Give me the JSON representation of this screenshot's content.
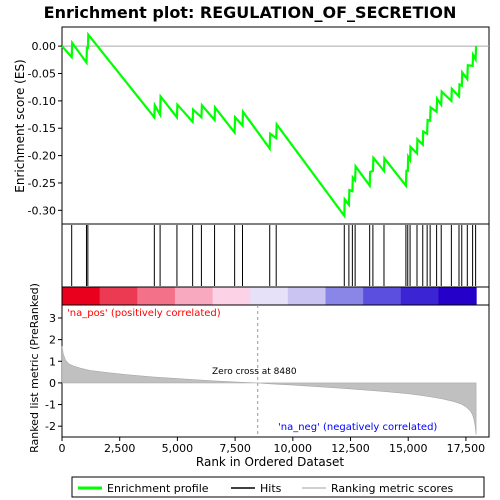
{
  "chart_data": {
    "type": "line",
    "title": "Enrichment plot: REGULATION_OF_SECRETION",
    "top_panel": {
      "ylabel": "Enrichment score (ES)",
      "ylim": [
        -0.325,
        0.035
      ],
      "yticks": [
        0.0,
        -0.05,
        -0.1,
        -0.15,
        -0.2,
        -0.25,
        -0.3
      ],
      "ytick_labels": [
        "0.00",
        "-0.05",
        "-0.10",
        "-0.15",
        "-0.20",
        "-0.25",
        "-0.30"
      ],
      "series": [
        {
          "name": "Enrichment profile",
          "color": "#00ff00",
          "x": [
            0,
            420,
            440,
            1060,
            1080,
            1120,
            1140,
            4000,
            4020,
            4250,
            4270,
            4980,
            5000,
            5660,
            5680,
            6040,
            6060,
            6610,
            6630,
            7480,
            7500,
            7820,
            7840,
            9000,
            9020,
            9280,
            9300,
            12230,
            12250,
            12430,
            12450,
            12580,
            12600,
            12700,
            12720,
            13330,
            13350,
            13470,
            13490,
            13950,
            13970,
            14900,
            14920,
            14980,
            15000,
            15080,
            15100,
            15380,
            15400,
            15630,
            15650,
            15820,
            15840,
            15950,
            15970,
            16230,
            16250,
            16430,
            16450,
            16870,
            16890,
            17200,
            17220,
            17320,
            17340,
            17560,
            17580,
            17790,
            17810,
            17920,
            17940
          ],
          "y": [
            0.0,
            -0.02,
            0.006,
            -0.03,
            -0.003,
            -0.003,
            0.021,
            -0.13,
            -0.108,
            -0.125,
            -0.092,
            -0.13,
            -0.107,
            -0.138,
            -0.116,
            -0.13,
            -0.108,
            -0.135,
            -0.112,
            -0.158,
            -0.13,
            -0.145,
            -0.12,
            -0.187,
            -0.16,
            -0.168,
            -0.143,
            -0.31,
            -0.28,
            -0.29,
            -0.263,
            -0.265,
            -0.24,
            -0.245,
            -0.22,
            -0.255,
            -0.23,
            -0.228,
            -0.204,
            -0.228,
            -0.205,
            -0.255,
            -0.228,
            -0.228,
            -0.202,
            -0.208,
            -0.184,
            -0.196,
            -0.17,
            -0.18,
            -0.156,
            -0.16,
            -0.135,
            -0.136,
            -0.112,
            -0.12,
            -0.096,
            -0.107,
            -0.083,
            -0.1,
            -0.078,
            -0.092,
            -0.07,
            -0.072,
            -0.048,
            -0.06,
            -0.035,
            -0.036,
            -0.016,
            -0.024,
            0.0
          ]
        }
      ]
    },
    "hits_panel": {
      "series_name": "Hits",
      "hit_positions": [
        420,
        1060,
        1120,
        4000,
        4250,
        4980,
        5660,
        6040,
        6610,
        7480,
        7820,
        9000,
        9280,
        12230,
        12430,
        12580,
        12700,
        13330,
        13470,
        13950,
        14900,
        14980,
        15080,
        15380,
        15630,
        15820,
        15950,
        16230,
        16430,
        16870,
        17200,
        17320,
        17560,
        17790,
        17920
      ]
    },
    "heat_bar": {
      "colors": [
        "#e8001c",
        "#ec3a52",
        "#f3728a",
        "#f8a8bf",
        "#fbd2e6",
        "#e6e0f8",
        "#c9c4f2",
        "#8a86e8",
        "#5b4fe0",
        "#3a24d4",
        "#2400c8"
      ],
      "label_pos": "'na_pos' (positively correlated)",
      "label_neg": "'na_neg' (negatively correlated)",
      "label_pos_color": "#ff0000",
      "label_neg_color": "#0000ff"
    },
    "bottom_panel": {
      "ylabel": "Ranked list metric (PreRanked)",
      "xlabel": "Rank in Ordered Dataset",
      "ylim": [
        -2.5,
        3.6
      ],
      "yticks": [
        3,
        2,
        1,
        0,
        -1,
        -2
      ],
      "ytick_labels": [
        "3",
        "2",
        "1",
        "0",
        "-1",
        "-2"
      ],
      "xlim": [
        0,
        18500
      ],
      "xticks": [
        0,
        2500,
        5000,
        7500,
        10000,
        12500,
        15000,
        17500
      ],
      "xtick_labels": [
        "0",
        "2,500",
        "5,000",
        "7,500",
        "10,000",
        "12,500",
        "15,000",
        "17,500"
      ],
      "zero_cross_label": "Zero cross at 8480",
      "zero_cross": 8480,
      "metric_x": [
        0,
        50,
        150,
        300,
        500,
        800,
        1200,
        2000,
        3000,
        4000,
        5000,
        6000,
        7000,
        8000,
        8480,
        9000,
        10000,
        11000,
        12000,
        13000,
        14000,
        15000,
        15500,
        16000,
        16500,
        17000,
        17300,
        17500,
        17700,
        17800,
        17850,
        17900,
        17940
      ],
      "metric_y": [
        1.7,
        1.35,
        1.05,
        0.88,
        0.78,
        0.68,
        0.58,
        0.47,
        0.36,
        0.27,
        0.2,
        0.13,
        0.07,
        0.02,
        0.0,
        -0.04,
        -0.1,
        -0.17,
        -0.24,
        -0.32,
        -0.4,
        -0.5,
        -0.57,
        -0.65,
        -0.74,
        -0.87,
        -0.98,
        -1.1,
        -1.3,
        -1.5,
        -1.7,
        -2.0,
        -2.4
      ]
    },
    "legend": {
      "items": [
        {
          "label": "Enrichment profile",
          "color": "#00ff00"
        },
        {
          "label": "Hits",
          "color": "#000000"
        },
        {
          "label": "Ranking metric scores",
          "color": "#c0c0c0"
        }
      ]
    }
  }
}
